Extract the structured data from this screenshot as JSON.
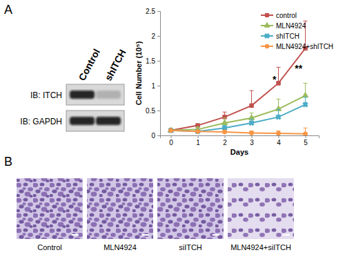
{
  "chart_data": {
    "type": "line",
    "x_label": "Days",
    "y_label": "Cell Number (10⁵)",
    "x": [
      0,
      1,
      2,
      3,
      4,
      5
    ],
    "xlim": [
      -0.4,
      5.5
    ],
    "xticks": [
      0,
      1,
      2,
      3,
      4,
      5
    ],
    "ylim": [
      0,
      2.5
    ],
    "yticks": [
      0,
      0.5,
      1,
      1.5,
      2,
      2.5
    ],
    "grid": false,
    "legend": "top-right",
    "series": [
      {
        "name": "control",
        "color": "#c0504d",
        "marker": "square",
        "values": [
          0.1,
          0.2,
          0.37,
          0.6,
          1.05,
          1.75
        ],
        "errors": [
          0.02,
          0.03,
          0.1,
          0.3,
          0.32,
          0.55
        ]
      },
      {
        "name": "MLN4924",
        "color": "#9bbb59",
        "marker": "triangle",
        "values": [
          0.1,
          0.12,
          0.25,
          0.35,
          0.53,
          0.8
        ],
        "errors": [
          0.02,
          0.05,
          0.1,
          0.1,
          0.2,
          0.25
        ]
      },
      {
        "name": "shITCH",
        "color": "#4bacc6",
        "marker": "x",
        "values": [
          0.1,
          0.08,
          0.15,
          0.25,
          0.37,
          0.62
        ],
        "errors": [
          0.02,
          0.03,
          0.05,
          0.08,
          0.15,
          0.15
        ]
      },
      {
        "name": "MLN4924+shITCH",
        "color": "#f79646",
        "marker": "circle",
        "values": [
          0.1,
          0.08,
          0.07,
          0.05,
          0.04,
          0.03
        ],
        "errors": [
          0.01,
          0.02,
          0.03,
          0.04,
          0.05,
          0.12
        ]
      }
    ],
    "annotations": [
      {
        "text": "*",
        "x": 3.85,
        "y": 1.05
      },
      {
        "text": "**",
        "x": 4.75,
        "y": 1.28
      }
    ]
  },
  "figure": {
    "panel_a": "A",
    "panel_b": "B",
    "blot": {
      "lanes": [
        "Control",
        "shITCH"
      ],
      "rows": [
        "IB: ITCH",
        "IB: GAPDH"
      ]
    },
    "images": [
      "Control",
      "MLN4924",
      "siITCH",
      "MLN4924+siITCH"
    ]
  }
}
